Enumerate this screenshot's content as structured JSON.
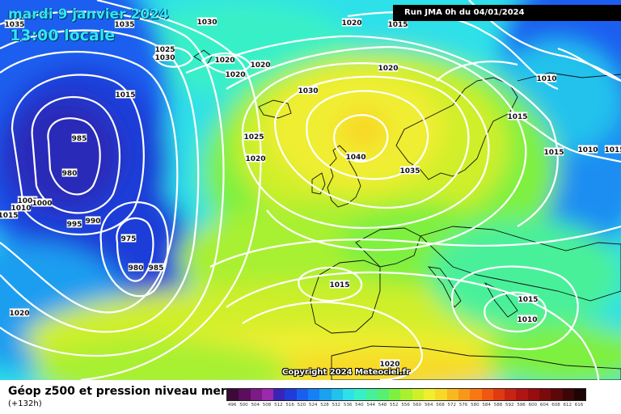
{
  "header": {
    "date_line": "mardi 9 janvier 2024",
    "time_line": "13:00 locale",
    "run_info": "Run JMA 0h du 04/01/2024"
  },
  "copyright": "Copyright 2024 Meteociel.fr",
  "legend": {
    "title": "Géop z500 et pression niveau mer",
    "subtitle": "(+132h)",
    "scale_values": [
      "496",
      "500",
      "504",
      "508",
      "512",
      "516",
      "520",
      "524",
      "528",
      "532",
      "536",
      "540",
      "544",
      "548",
      "552",
      "556",
      "560",
      "564",
      "568",
      "572",
      "576",
      "580",
      "584",
      "588",
      "592",
      "596",
      "600",
      "604",
      "608",
      "612",
      "616"
    ],
    "scale_colors": [
      "#3b0a38",
      "#5a0e5c",
      "#7c1a86",
      "#9b28ad",
      "#3a24b5",
      "#1f3cd8",
      "#1a5ef0",
      "#1681f5",
      "#1aa2f0",
      "#22c2ec",
      "#2ee0e8",
      "#38f0c8",
      "#48f09a",
      "#58f070",
      "#7ef040",
      "#a8f030",
      "#cfef2a",
      "#f0ee30",
      "#f8d828",
      "#f8b820",
      "#f89818",
      "#f87814",
      "#f05812",
      "#e03a12",
      "#c82414",
      "#b01414",
      "#980c10",
      "#7a0a0c",
      "#5c0808",
      "#3c0606",
      "#1e0404"
    ]
  },
  "isobar_labels": [
    {
      "text": "1035"
    },
    {
      "text": "1035"
    },
    {
      "text": "1030"
    },
    {
      "text": "1025"
    },
    {
      "text": "1030"
    },
    {
      "text": "1020"
    },
    {
      "text": "1020"
    },
    {
      "text": "1020"
    },
    {
      "text": "1020"
    },
    {
      "text": "1015"
    },
    {
      "text": "1030"
    },
    {
      "text": "1020"
    },
    {
      "text": "1015"
    },
    {
      "text": "1010"
    },
    {
      "text": "1015"
    },
    {
      "text": "1015"
    },
    {
      "text": "1010"
    },
    {
      "text": "1015"
    },
    {
      "text": "985"
    },
    {
      "text": "980"
    },
    {
      "text": "1025"
    },
    {
      "text": "1020"
    },
    {
      "text": "1040"
    },
    {
      "text": "1035"
    },
    {
      "text": "1005"
    },
    {
      "text": "1000"
    },
    {
      "text": "1010"
    },
    {
      "text": "1015"
    },
    {
      "text": "995"
    },
    {
      "text": "990"
    },
    {
      "text": "975"
    },
    {
      "text": "980"
    },
    {
      "text": "985"
    },
    {
      "text": "1015"
    },
    {
      "text": "1015"
    },
    {
      "text": "1010"
    },
    {
      "text": "1020"
    },
    {
      "text": "1020"
    }
  ]
}
